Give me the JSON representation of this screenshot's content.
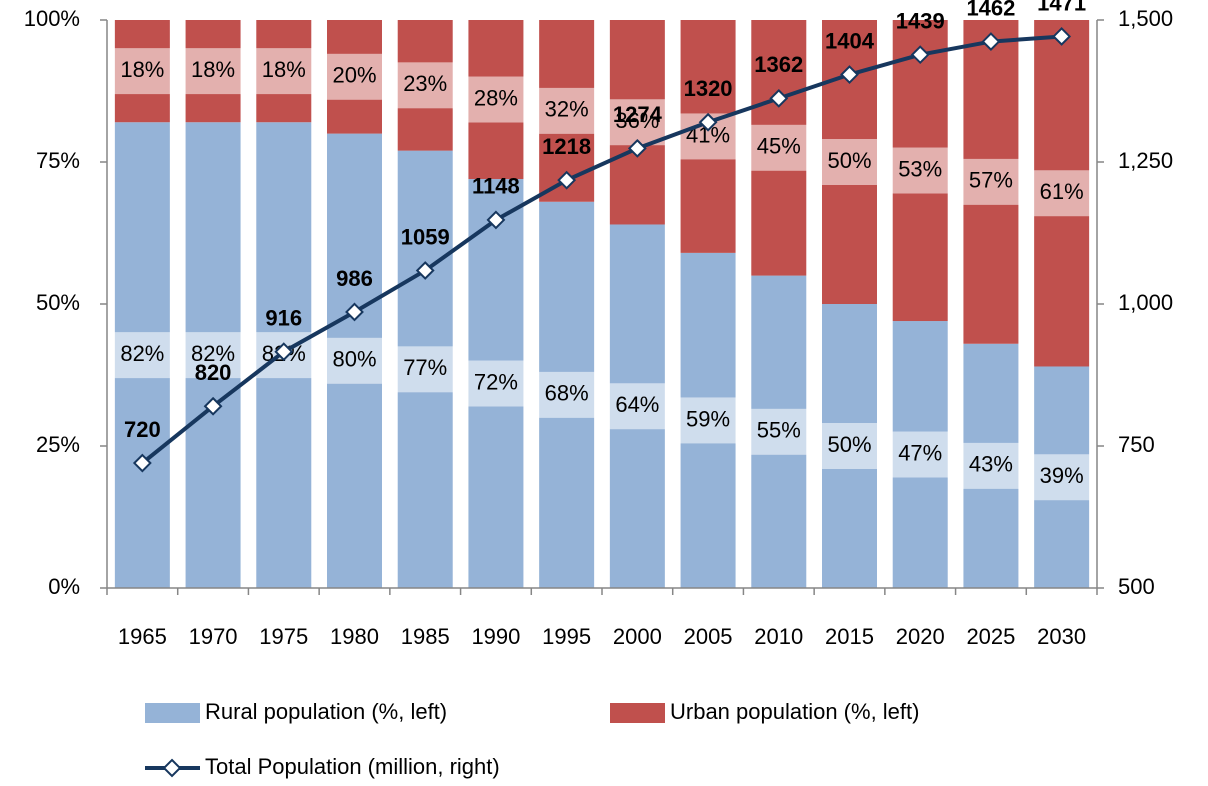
{
  "chart_data": {
    "type": "bar",
    "stacked": true,
    "categories": [
      "1965",
      "1970",
      "1975",
      "1980",
      "1985",
      "1990",
      "1995",
      "2000",
      "2005",
      "2010",
      "2015",
      "2020",
      "2025",
      "2030"
    ],
    "series": [
      {
        "name": "Rural population (%, left)",
        "color": "#95b3d7",
        "values": [
          82,
          82,
          82,
          80,
          77,
          72,
          68,
          64,
          59,
          55,
          50,
          47,
          43,
          39
        ],
        "value_labels": [
          "82%",
          "82%",
          "82%",
          "80%",
          "77%",
          "72%",
          "68%",
          "64%",
          "59%",
          "55%",
          "50%",
          "47%",
          "43%",
          "39%"
        ]
      },
      {
        "name": "Urban population (%, left)",
        "color": "#c0504d",
        "values": [
          18,
          18,
          18,
          20,
          23,
          28,
          32,
          36,
          41,
          45,
          50,
          53,
          57,
          61
        ],
        "value_labels": [
          "18%",
          "18%",
          "18%",
          "20%",
          "23%",
          "28%",
          "32%",
          "36%",
          "41%",
          "45%",
          "50%",
          "53%",
          "57%",
          "61%"
        ]
      },
      {
        "name": "Total Population (million, right)",
        "color": "#17375e",
        "type": "line",
        "axis": "y2",
        "values": [
          720,
          820,
          916,
          986,
          1059,
          1148,
          1218,
          1274,
          1320,
          1362,
          1404,
          1439,
          1462,
          1471
        ]
      }
    ],
    "ylim": [
      0,
      100
    ],
    "yticks": [
      {
        "value": 0,
        "label": "0%"
      },
      {
        "value": 25,
        "label": "25%"
      },
      {
        "value": 50,
        "label": "50%"
      },
      {
        "value": 75,
        "label": "75%"
      },
      {
        "value": 100,
        "label": "100%"
      }
    ],
    "y2lim": [
      500,
      1500
    ],
    "y2ticks": [
      500,
      750,
      {
        "value": 1000,
        "label": "1,000"
      },
      {
        "value": 1250,
        "label": "1,250"
      },
      {
        "value": 1500,
        "label": "1,500"
      }
    ],
    "grid": false,
    "legend": "bottom"
  }
}
